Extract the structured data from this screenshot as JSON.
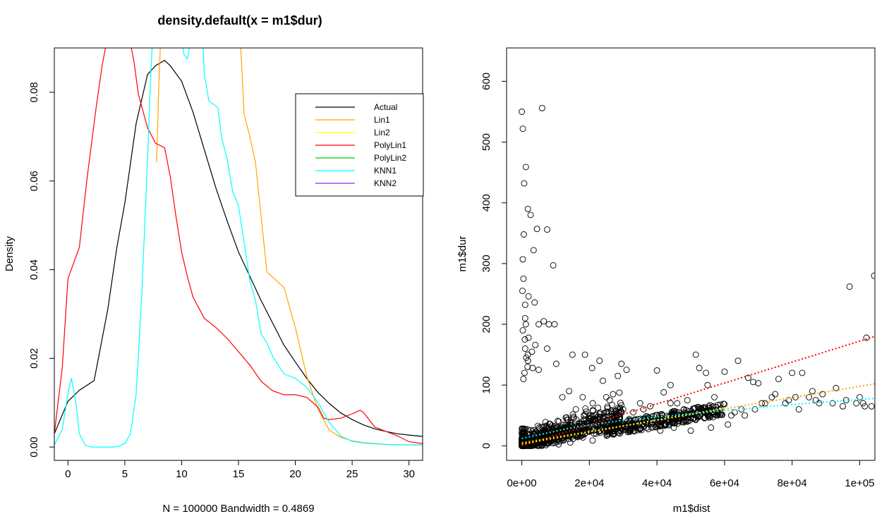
{
  "chart_data": [
    {
      "type": "line",
      "title": "density.default(x = m1$dur)",
      "xlabel": "N = 100000   Bandwidth = 0.4869",
      "ylabel": "Density",
      "xlim": [
        -1.2,
        31.2
      ],
      "ylim": [
        -0.003,
        0.09
      ],
      "xticks": [
        0,
        5,
        10,
        15,
        20,
        25,
        30
      ],
      "yticks": [
        0.0,
        0.02,
        0.04,
        0.06,
        0.08
      ],
      "xtick_labels": [
        "0",
        "5",
        "10",
        "15",
        "20",
        "25",
        "30"
      ],
      "ytick_labels": [
        "0.00",
        "0.02",
        "0.04",
        "0.06",
        "0.08"
      ],
      "legend_position": "top-right",
      "series": [
        {
          "name": "Actual",
          "color": "#000000",
          "x": [
            -1.2,
            0,
            1,
            2.3,
            3.5,
            4.3,
            5,
            6,
            7,
            7.7,
            8.5,
            9,
            10,
            11,
            12,
            13,
            14,
            15,
            16,
            17,
            18,
            19,
            20,
            21,
            22,
            23,
            24,
            25,
            26,
            27,
            28,
            29,
            30,
            31.2
          ],
          "y": [
            0.003,
            0.0103,
            0.0128,
            0.015,
            0.031,
            0.045,
            0.055,
            0.073,
            0.084,
            0.086,
            0.0872,
            0.086,
            0.0825,
            0.0755,
            0.067,
            0.0585,
            0.051,
            0.044,
            0.0385,
            0.033,
            0.028,
            0.023,
            0.0192,
            0.0155,
            0.0123,
            0.0098,
            0.0077,
            0.0062,
            0.005,
            0.0041,
            0.0035,
            0.003,
            0.0027,
            0.0024
          ]
        },
        {
          "name": "Lin1",
          "color": "#FFA500",
          "x": [
            7.8,
            8.0,
            8.2,
            15.1,
            15.5,
            16,
            16.5,
            17.5,
            19,
            20,
            21,
            22,
            23,
            24,
            25,
            26,
            27,
            28,
            29,
            30,
            31.2
          ],
          "y": [
            0.0642,
            0.082,
            0.095,
            0.095,
            0.075,
            0.07,
            0.064,
            0.0395,
            0.036,
            0.027,
            0.016,
            0.0085,
            0.0038,
            0.0022,
            0.0014,
            0.001,
            0.0008,
            0.0006,
            0.0005,
            0.0005,
            0.0005
          ]
        },
        {
          "name": "Lin2",
          "color": "#FFFF00",
          "x": [],
          "y": []
        },
        {
          "name": "PolyLin1",
          "color": "#FF0000",
          "x": [
            -1.2,
            -0.5,
            0,
            1,
            1.7,
            2.5,
            3,
            3.3,
            3.8,
            5.2,
            5.8,
            6.2,
            7,
            7.7,
            8.5,
            9,
            9.5,
            10,
            10.5,
            11,
            12,
            13,
            14,
            15,
            16,
            17,
            18,
            19,
            20,
            21,
            22,
            22.5,
            23,
            24,
            25,
            25.7,
            26,
            27,
            28,
            29,
            30,
            31.2
          ],
          "y": [
            0.003,
            0.018,
            0.038,
            0.045,
            0.061,
            0.077,
            0.086,
            0.09,
            0.095,
            0.095,
            0.087,
            0.0795,
            0.072,
            0.0685,
            0.0675,
            0.061,
            0.052,
            0.044,
            0.0385,
            0.0338,
            0.029,
            0.027,
            0.0245,
            0.0215,
            0.0185,
            0.0148,
            0.0127,
            0.0118,
            0.0118,
            0.0112,
            0.009,
            0.0065,
            0.0062,
            0.0065,
            0.0075,
            0.0083,
            0.0078,
            0.0045,
            0.0035,
            0.0025,
            0.0012,
            0.0008
          ]
        },
        {
          "name": "PolyLin2",
          "color": "#00CC00",
          "x": [],
          "y": []
        },
        {
          "name": "KNN1",
          "color": "#00FFFF",
          "x": [
            -1.2,
            -0.5,
            0,
            0.3,
            0.7,
            1,
            1.5,
            2,
            3,
            4,
            4.5,
            5,
            5.5,
            6,
            6.5,
            7,
            7.3,
            7.5,
            9.8,
            10.2,
            10.5,
            11,
            11.8,
            12,
            12.4,
            12.7,
            13.2,
            13.5,
            14,
            14.5,
            15,
            15.5,
            16,
            16.5,
            17,
            17.5,
            18,
            19,
            20,
            21,
            22,
            23,
            24,
            25,
            26,
            27,
            28,
            29,
            30,
            31.2
          ],
          "y": [
            0.0005,
            0.004,
            0.012,
            0.0155,
            0.01,
            0.003,
            0.0005,
            0,
            0,
            0,
            0.0002,
            0.0008,
            0.003,
            0.012,
            0.035,
            0.065,
            0.085,
            0.095,
            0.095,
            0.0885,
            0.0875,
            0.095,
            0.095,
            0.084,
            0.078,
            0.0775,
            0.0765,
            0.07,
            0.065,
            0.0575,
            0.0545,
            0.046,
            0.0375,
            0.033,
            0.0255,
            0.0235,
            0.0205,
            0.0165,
            0.0155,
            0.0135,
            0.01,
            0.0055,
            0.0025,
            0.0013,
            0.0009,
            0.0007,
            0.0006,
            0.0005,
            0.0005,
            0.0005
          ]
        },
        {
          "name": "KNN2",
          "color": "#A020F0",
          "x": [],
          "y": []
        }
      ]
    },
    {
      "type": "scatter",
      "title": "",
      "xlabel": "m1$dist",
      "ylabel": "m1$dur",
      "xlim": [
        -4500,
        104500
      ],
      "ylim": [
        -24,
        655
      ],
      "xticks": [
        0,
        20000,
        40000,
        60000,
        80000,
        100000
      ],
      "xtick_labels": [
        "0e+00",
        "2e+04",
        "4e+04",
        "6e+04",
        "8e+04",
        "1e+05"
      ],
      "yticks": [
        0,
        100,
        200,
        300,
        400,
        500,
        600
      ],
      "ytick_labels": [
        "0",
        "100",
        "200",
        "300",
        "400",
        "500",
        "600"
      ],
      "points": {
        "x": [
          0,
          300,
          700,
          1200,
          1800,
          2600,
          3500,
          4500,
          6000,
          7500,
          8000,
          9300,
          500,
          200,
          1000,
          3800,
          300,
          4000,
          5000,
          600,
          2000,
          1000,
          6500,
          1200,
          300,
          900,
          2000,
          1700,
          1000,
          1800,
          7500,
          800,
          500,
          1300,
          3000,
          1800,
          5000,
          3200,
          9700,
          10200,
          15000,
          18700,
          20800,
          23000,
          24000,
          25000,
          27000,
          28400,
          29500,
          31000,
          35000,
          36000,
          40000,
          42000,
          44000,
          46000,
          49000,
          51500,
          52500,
          54500,
          55000,
          57000,
          58500,
          60000,
          62000,
          64000,
          65000,
          67000,
          68500,
          70000,
          72000,
          74000,
          76000,
          78000,
          80000,
          82000,
          83000,
          85000,
          87000,
          88000,
          92000,
          95000,
          97000,
          100000,
          101000,
          102000,
          103500,
          104300,
          12000,
          14000,
          16000,
          18000,
          21000,
          26000,
          30000,
          33000,
          38000,
          44000,
          48000,
          53000,
          58000,
          63000,
          66000,
          69000,
          71000,
          75000,
          79000,
          81000,
          86000,
          89000,
          93000,
          96000,
          99000,
          101500,
          11000,
          13000,
          17000,
          19000,
          22000,
          27000,
          32000,
          37000,
          41000,
          45000,
          50000,
          56000,
          61000
        ],
        "y": [
          550,
          522,
          432,
          459,
          390,
          380,
          322,
          357,
          556,
          356,
          200,
          297,
          275,
          255,
          232,
          236,
          307,
          166,
          200,
          348,
          246,
          210,
          205,
          200,
          190,
          175,
          178,
          130,
          160,
          140,
          160,
          120,
          110,
          145,
          155,
          150,
          125,
          128,
          200,
          135,
          150,
          150,
          128,
          140,
          107,
          80,
          85,
          115,
          135,
          125,
          70,
          60,
          124,
          88,
          100,
          70,
          75,
          150,
          128,
          120,
          100,
          80,
          60,
          122,
          50,
          140,
          60,
          112,
          105,
          103,
          70,
          80,
          110,
          70,
          120,
          60,
          120,
          80,
          75,
          70,
          70,
          65,
          262,
          80,
          70,
          178,
          65,
          280,
          80,
          90,
          60,
          80,
          70,
          75,
          60,
          55,
          65,
          70,
          60,
          60,
          50,
          55,
          50,
          60,
          70,
          85,
          75,
          80,
          90,
          85,
          95,
          75,
          70,
          65,
          40,
          35,
          30,
          25,
          20,
          20,
          25,
          30,
          25,
          30,
          25,
          30,
          35
        ]
      },
      "lines": [
        {
          "name": "PolyLin1",
          "color": "#FF0000",
          "x": [
            0,
            104500
          ],
          "y": [
            0,
            180
          ]
        },
        {
          "name": "Lin1",
          "color": "#FFA500",
          "x": [
            0,
            104500
          ],
          "y": [
            5,
            102
          ]
        },
        {
          "name": "Lin2",
          "color": "#FFFF00",
          "x": [
            0,
            60000
          ],
          "y": [
            3,
            62
          ]
        },
        {
          "name": "KNN1",
          "color": "#00FFFF",
          "x": [
            0,
            5000,
            15000,
            30000,
            45000,
            60000,
            80000,
            104500
          ],
          "y": [
            12,
            18,
            30,
            42,
            50,
            58,
            68,
            78
          ]
        }
      ]
    }
  ]
}
